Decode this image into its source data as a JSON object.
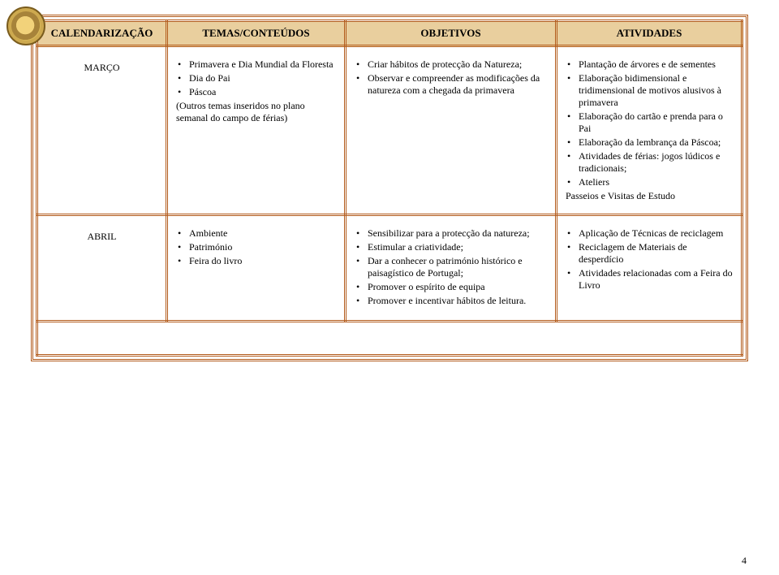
{
  "colors": {
    "header_bg": "#e9cf9e",
    "border": "#b25a1a",
    "page_bg": "#ffffff",
    "text": "#000000"
  },
  "headers": {
    "col1": "CALENDARIZAÇÃO",
    "col2": "TEMAS/CONTEÚDOS",
    "col3": "OBJETIVOS",
    "col4": "ATIVIDADES"
  },
  "rows": {
    "marco": {
      "label": "MARÇO",
      "temas": {
        "b1": "Primavera e Dia Mundial da Floresta",
        "b2": "Dia do Pai",
        "b3": "Páscoa",
        "plain": "(Outros temas inseridos no plano semanal do campo de férias)"
      },
      "obj": {
        "b1": "Criar hábitos de protecção da Natureza;",
        "b2": "Observar e compreender as modificações da natureza com a chegada da primavera"
      },
      "ativ": {
        "b1": "Plantação de árvores e de sementes",
        "b2": "Elaboração bidimensional e tridimensional de motivos alusivos à primavera",
        "b3": "Elaboração do cartão e prenda para o Pai",
        "b4": "Elaboração da lembrança da Páscoa;",
        "b5": "Atividades de férias: jogos lúdicos e tradicionais;",
        "b6": "Ateliers",
        "plain": "Passeios e Visitas de Estudo"
      }
    },
    "abril": {
      "label": "ABRIL",
      "temas": {
        "b1": "Ambiente",
        "b2": "Património",
        "b3": "Feira do livro"
      },
      "obj": {
        "b1": "Sensibilizar para a protecção da natureza;",
        "b2": "Estimular a criatividade;",
        "b3": "Dar a conhecer o património histórico e paisagístico de Portugal;",
        "b4": "Promover o espírito de equipa",
        "b5": "Promover e incentivar hábitos de leitura."
      },
      "ativ": {
        "b1": "Aplicação de Técnicas de reciclagem",
        "b2": "Reciclagem de Materiais de desperdício",
        "b3": "Atividades relacionadas com a Feira do Livro"
      }
    }
  },
  "page_number": "4"
}
